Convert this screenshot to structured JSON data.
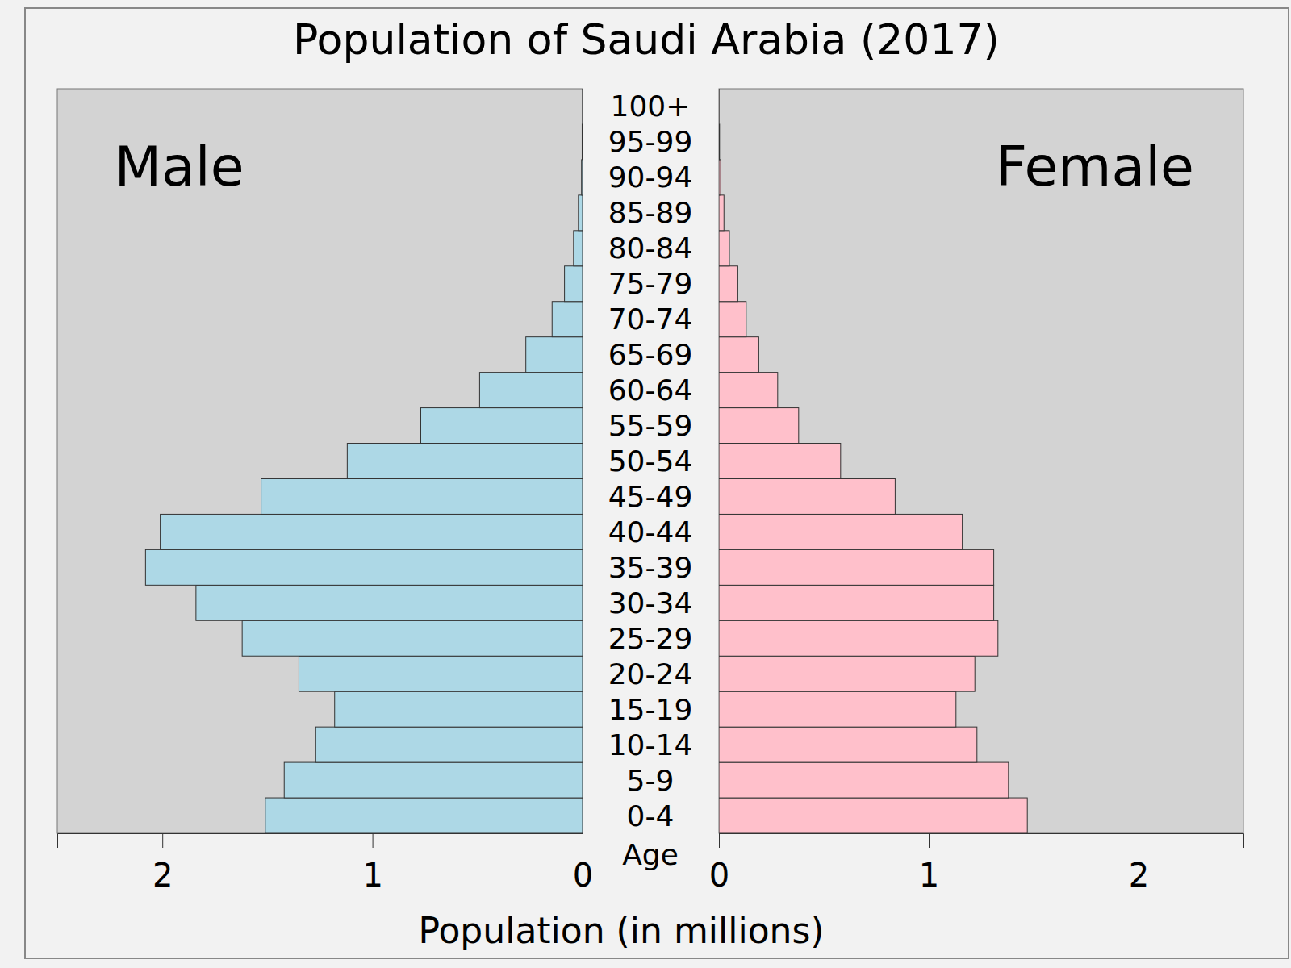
{
  "chart_data": {
    "type": "pyramid",
    "title": "Population of Saudi Arabia (2017)",
    "x_label": "Population (in millions)",
    "y_label": "Age",
    "orientation": "horizontal",
    "categories": [
      "0-4",
      "5-9",
      "10-14",
      "15-19",
      "20-24",
      "25-29",
      "30-34",
      "35-39",
      "40-44",
      "45-49",
      "50-54",
      "55-59",
      "60-64",
      "65-69",
      "70-74",
      "75-79",
      "80-84",
      "85-89",
      "90-94",
      "95-99",
      "100+"
    ],
    "series": [
      {
        "name": "Male",
        "color": "#add8e6",
        "values": [
          1.51,
          1.42,
          1.27,
          1.18,
          1.35,
          1.62,
          1.84,
          2.08,
          2.01,
          1.53,
          1.12,
          0.77,
          0.49,
          0.27,
          0.145,
          0.086,
          0.043,
          0.02,
          0.005,
          0.002,
          0.0003
        ]
      },
      {
        "name": "Female",
        "color": "#ffc0cb",
        "values": [
          1.47,
          1.38,
          1.23,
          1.13,
          1.22,
          1.33,
          1.31,
          1.31,
          1.16,
          0.84,
          0.58,
          0.38,
          0.28,
          0.19,
          0.13,
          0.09,
          0.05,
          0.024,
          0.008,
          0.003,
          0.0004
        ]
      }
    ],
    "xlim": [
      0,
      2.5
    ],
    "xticks": [
      0,
      1,
      2
    ]
  }
}
